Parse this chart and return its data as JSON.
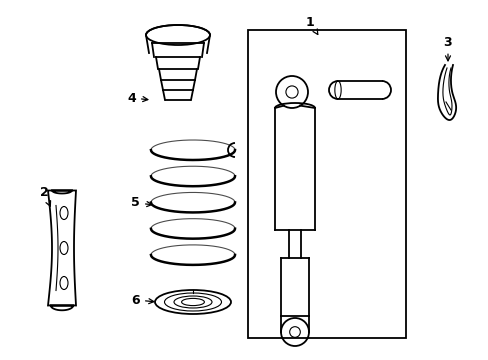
{
  "bg_color": "#ffffff",
  "line_color": "#000000",
  "lw": 1.3,
  "tlw": 0.8,
  "fig_width": 4.89,
  "fig_height": 3.6
}
